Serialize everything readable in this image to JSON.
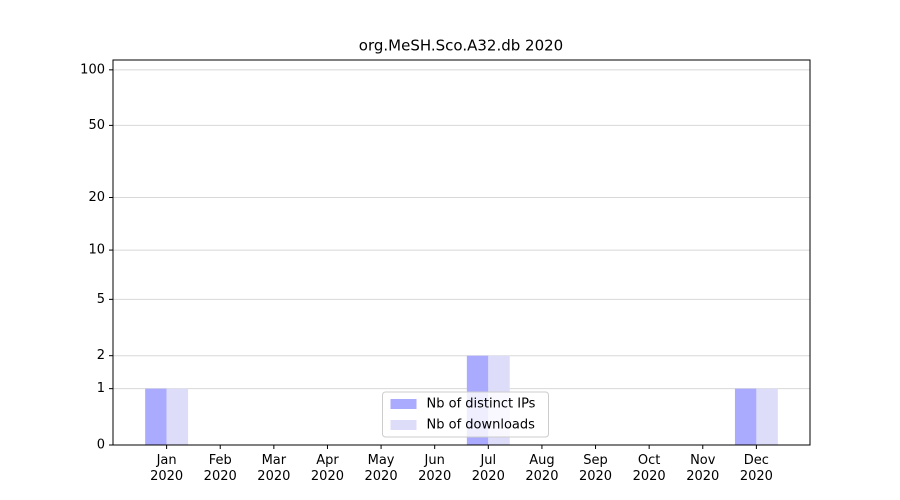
{
  "chart_data": {
    "type": "bar",
    "title": "org.MeSH.Sco.A32.db 2020",
    "categories": [
      "Jan\n2020",
      "Feb\n2020",
      "Mar\n2020",
      "Apr\n2020",
      "May\n2020",
      "Jun\n2020",
      "Jul\n2020",
      "Aug\n2020",
      "Sep\n2020",
      "Oct\n2020",
      "Nov\n2020",
      "Dec\n2020"
    ],
    "series": [
      {
        "name": "Nb of distinct IPs",
        "color": "#aaaaff",
        "values": [
          1,
          0,
          0,
          0,
          0,
          0,
          2,
          0,
          0,
          0,
          0,
          1
        ]
      },
      {
        "name": "Nb of downloads",
        "color": "#ddddfa",
        "values": [
          1,
          0,
          0,
          0,
          0,
          0,
          2,
          0,
          0,
          0,
          0,
          1
        ]
      }
    ],
    "yscale": "log1p",
    "ylim": [
      0,
      113
    ],
    "yticks": [
      0,
      1,
      2,
      5,
      10,
      20,
      50,
      100
    ],
    "grid": true,
    "legend": "lower center"
  }
}
